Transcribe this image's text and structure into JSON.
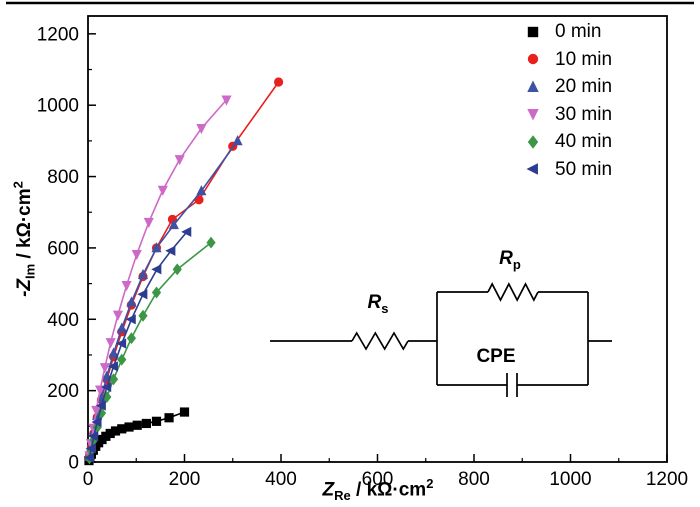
{
  "chart_data": {
    "type": "scatter",
    "title": "",
    "xlabel": {
      "main": "Z",
      "sub": "Re",
      "rest": " / kΩ·cm",
      "sup": "2"
    },
    "ylabel": {
      "main": "-Z",
      "sub": "Im",
      "rest": " / kΩ·cm",
      "sup": "2"
    },
    "xlim": [
      0,
      1200
    ],
    "ylim": [
      0,
      1250
    ],
    "xticks": [
      0,
      200,
      400,
      600,
      800,
      1000,
      1200
    ],
    "yticks": [
      0,
      200,
      400,
      600,
      800,
      1000,
      1200
    ],
    "minor_tick_step": 100,
    "grid": false,
    "legend_position": "top-right",
    "series": [
      {
        "name": "0 min",
        "color": "#000000",
        "marker": "square",
        "x": [
          2,
          4,
          7,
          11,
          16,
          22,
          29,
          37,
          46,
          57,
          70,
          85,
          102,
          121,
          142,
          168,
          200
        ],
        "y": [
          4,
          12,
          22,
          33,
          44,
          54,
          63,
          72,
          80,
          87,
          93,
          98,
          103,
          108,
          114,
          124,
          140
        ]
      },
      {
        "name": "10 min",
        "color": "#e8201e",
        "marker": "circle",
        "x": [
          3,
          7,
          12,
          19,
          28,
          39,
          53,
          70,
          90,
          114,
          142,
          175,
          230,
          300,
          395
        ],
        "y": [
          14,
          42,
          80,
          125,
          175,
          232,
          295,
          365,
          440,
          520,
          600,
          680,
          735,
          885,
          1065
        ]
      },
      {
        "name": "20 min",
        "color": "#3f51a5",
        "marker": "triangle-up",
        "x": [
          3,
          7,
          12,
          19,
          28,
          39,
          53,
          70,
          90,
          114,
          142,
          178,
          235,
          310
        ],
        "y": [
          15,
          45,
          85,
          130,
          182,
          240,
          305,
          375,
          448,
          525,
          600,
          665,
          760,
          900
        ]
      },
      {
        "name": "30 min",
        "color": "#cd6ac8",
        "marker": "triangle-down",
        "x": [
          3,
          6,
          11,
          17,
          25,
          35,
          47,
          62,
          80,
          101,
          126,
          155,
          190,
          235,
          287
        ],
        "y": [
          18,
          52,
          95,
          145,
          202,
          265,
          335,
          412,
          495,
          582,
          672,
          762,
          848,
          935,
          1015
        ]
      },
      {
        "name": "40 min",
        "color": "#3c9646",
        "marker": "diamond",
        "x": [
          3,
          7,
          12,
          19,
          28,
          39,
          53,
          70,
          90,
          114,
          142,
          185,
          255
        ],
        "y": [
          10,
          32,
          62,
          97,
          137,
          182,
          232,
          287,
          347,
          410,
          475,
          540,
          615
        ]
      },
      {
        "name": "50 min",
        "color": "#2b3c92",
        "marker": "triangle-left",
        "x": [
          3,
          7,
          12,
          19,
          28,
          39,
          53,
          70,
          90,
          114,
          143,
          172,
          205
        ],
        "y": [
          12,
          38,
          72,
          112,
          158,
          210,
          268,
          332,
          400,
          470,
          540,
          592,
          645
        ]
      }
    ]
  },
  "circuit": {
    "rs_main": "R",
    "rs_sub": "s",
    "rp_main": "R",
    "rp_sub": "p",
    "cpe_label": "CPE"
  }
}
